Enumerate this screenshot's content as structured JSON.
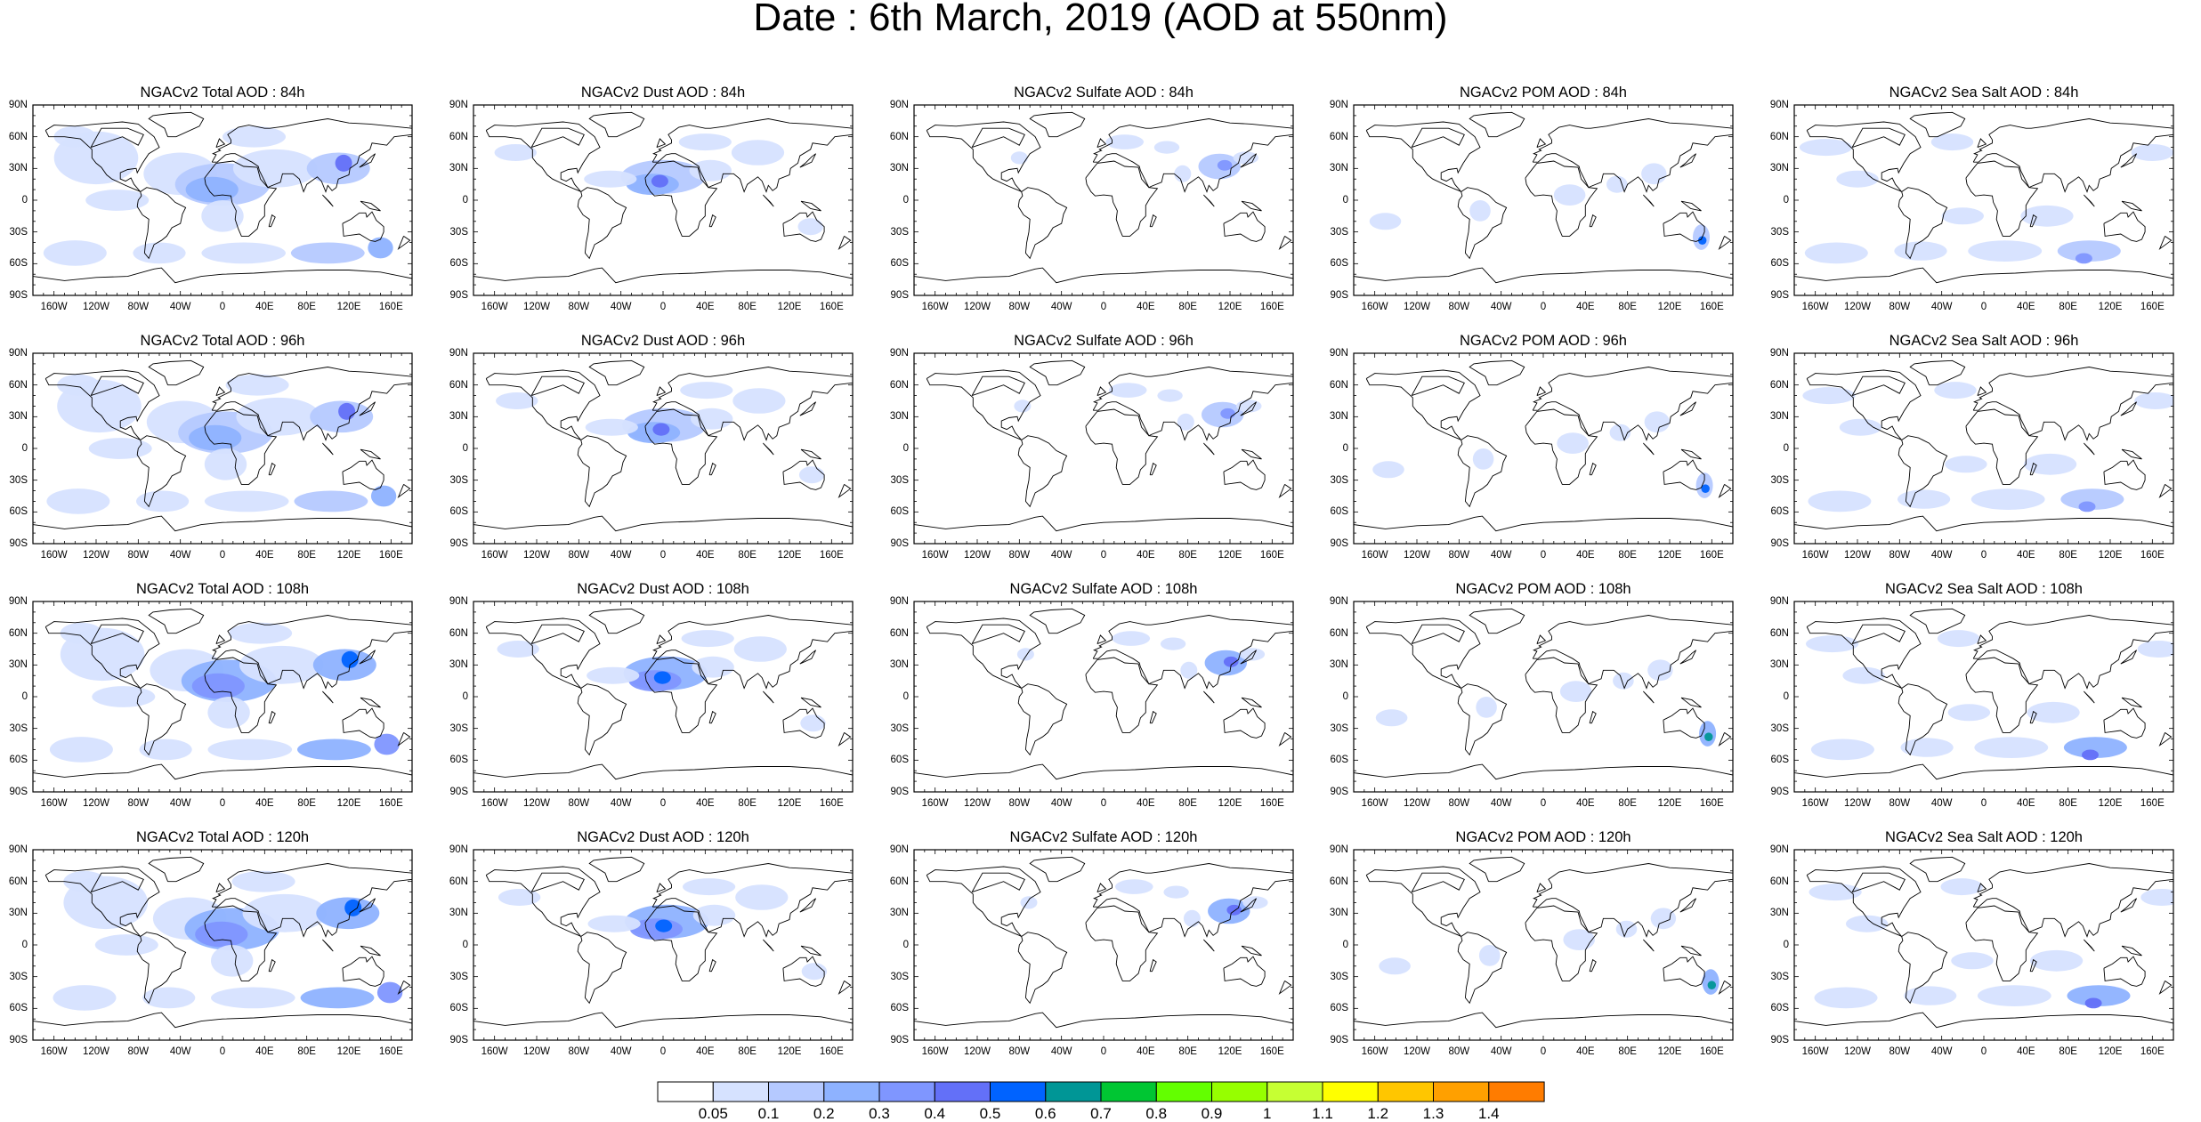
{
  "title": "Date : 6th March, 2019 (AOD at 550nm)",
  "panel_titles": [
    [
      "NGACv2 Total AOD : 84h",
      "NGACv2 Dust AOD : 84h",
      "NGACv2 Sulfate AOD : 84h",
      "NGACv2 POM AOD : 84h",
      "NGACv2 Sea Salt AOD : 84h"
    ],
    [
      "NGACv2 Total AOD : 96h",
      "NGACv2 Dust AOD : 96h",
      "NGACv2 Sulfate AOD : 96h",
      "NGACv2 POM AOD : 96h",
      "NGACv2 Sea Salt AOD : 96h"
    ],
    [
      "NGACv2 Total AOD : 108h",
      "NGACv2 Dust AOD : 108h",
      "NGACv2 Sulfate AOD : 108h",
      "NGACv2 POM AOD : 108h",
      "NGACv2 Sea Salt AOD : 108h"
    ],
    [
      "NGACv2 Total AOD : 120h",
      "NGACv2 Dust AOD : 120h",
      "NGACv2 Sulfate AOD : 120h",
      "NGACv2 POM AOD : 120h",
      "NGACv2 Sea Salt  AOD : 120h"
    ]
  ],
  "lat_labels": [
    "90N",
    "60N",
    "30N",
    "0",
    "30S",
    "60S",
    "90S"
  ],
  "lon_labels": [
    "160W",
    "120W",
    "80W",
    "40W",
    "0",
    "40E",
    "80E",
    "120E",
    "160E"
  ],
  "colorbar": {
    "labels": [
      "0.05",
      "0.1",
      "0.2",
      "0.3",
      "0.4",
      "0.5",
      "0.6",
      "0.7",
      "0.8",
      "0.9",
      "1",
      "1.1",
      "1.2",
      "1.3",
      "1.4"
    ],
    "colors": [
      "#ffffff",
      "#d6e2ff",
      "#b5c9ff",
      "#8eb2ff",
      "#7f96ff",
      "#6370f8",
      "#0063ff",
      "#009696",
      "#00c633",
      "#63ff00",
      "#96ff00",
      "#c6ff33",
      "#ffff00",
      "#ffc600",
      "#ffa000",
      "#ff7c00",
      "#ff1900"
    ]
  }
}
